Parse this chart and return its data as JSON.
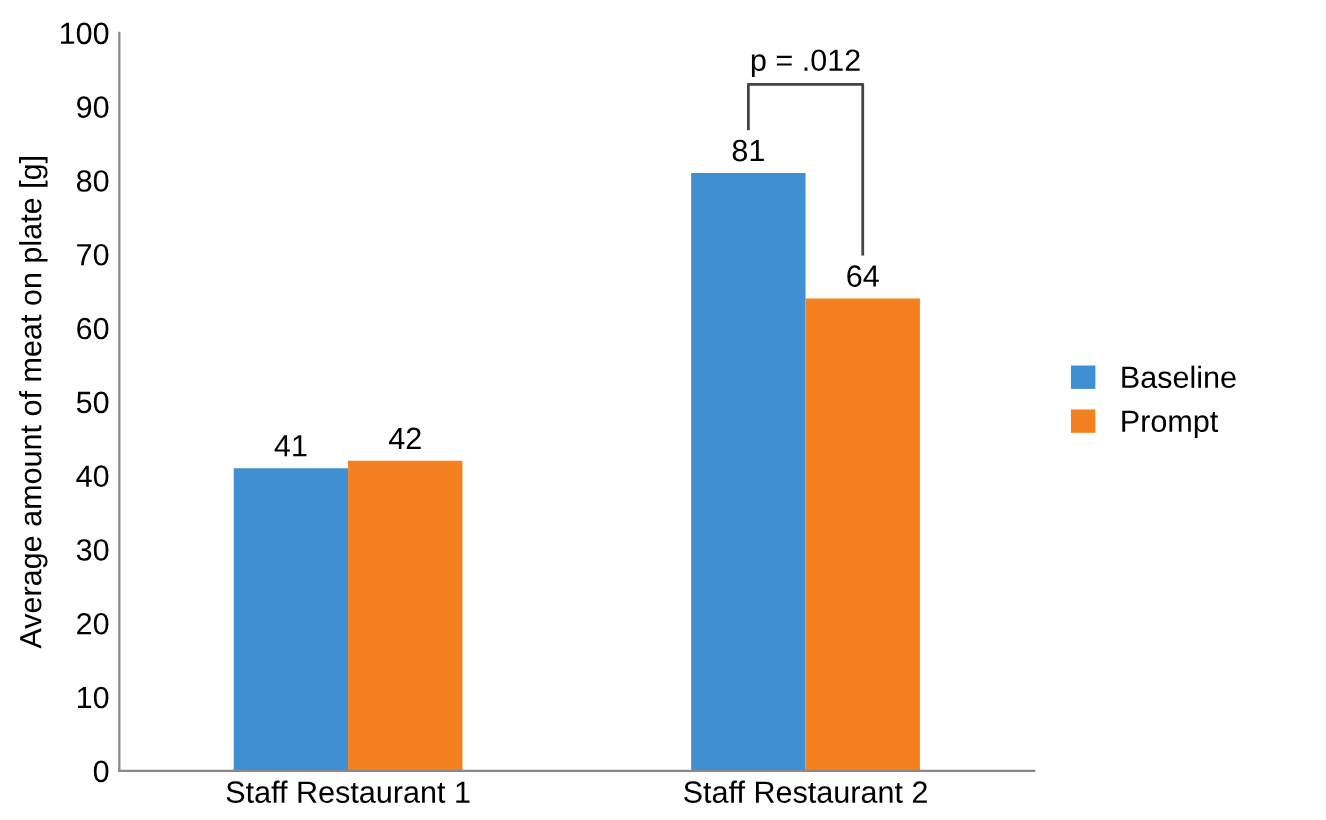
{
  "chart_data": {
    "type": "bar",
    "ylabel": "Average amount of meat on plate [g]",
    "categories": [
      "Staff Restaurant 1",
      "Staff Restaurant 2"
    ],
    "series": [
      {
        "name": "Baseline",
        "color": "#3f8fd2",
        "values": [
          41,
          81
        ]
      },
      {
        "name": "Prompt",
        "color": "#f5801f",
        "values": [
          42,
          64
        ]
      }
    ],
    "ylim": [
      0,
      100
    ],
    "yticks": [
      0,
      10,
      20,
      30,
      40,
      50,
      60,
      70,
      80,
      90,
      100
    ],
    "data_labels": true,
    "grid": false,
    "legend": "right",
    "annotations": [
      "p = .012"
    ]
  }
}
